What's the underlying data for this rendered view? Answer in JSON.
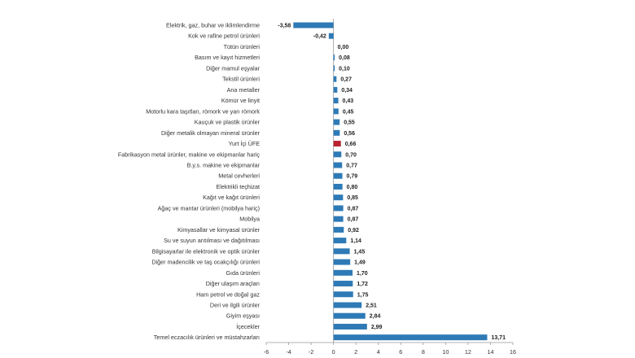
{
  "chart_data": {
    "type": "bar",
    "orientation": "horizontal",
    "categories": [
      "Elektrik, gaz, buhar ve iklimlendirme",
      "Kok ve rafine petrol ürünleri",
      "Tütün ürünleri",
      "Basım ve kayıt hizmetleri",
      "Diğer mamul eşyalar",
      "Tekstil ürünleri",
      "Ana metaller",
      "Kömür ve linyit",
      "Motorlu kara taşıtları, römork ve yarı römork",
      "Kauçuk ve plastik ürünler",
      "Diğer metalik olmayan mineral ürünler",
      "Yurt İçi ÜFE",
      "Fabrikasyon metal ürünler, makine ve ekipmanlar hariç",
      "B.y.s. makine ve ekipmanlar",
      "Metal cevherleri",
      "Elektrikli teçhizat",
      "Kağıt ve kağıt ürünleri",
      "Ağaç ve mantar ürünleri (mobilya hariç)",
      "Mobilya",
      "Kimyasallar ve kimyasal ürünler",
      "Su ve suyun arıtılması ve dağıtılması",
      "Bilgisayarlar ile elektronik ve optik ürünler",
      "Diğer madencilik ve taş ocakçılığı ürünleri",
      "Gıda ürünleri",
      "Diğer ulaşım araçları",
      "Ham petrol ve doğal gaz",
      "Deri ve ilgili ürünler",
      "Giyim eşyası",
      "İçecekler",
      "Temel eczacılık ürünleri ve müstahzarları"
    ],
    "values": [
      -3.58,
      -0.42,
      0.0,
      0.08,
      0.1,
      0.27,
      0.34,
      0.43,
      0.45,
      0.55,
      0.56,
      0.66,
      0.7,
      0.77,
      0.79,
      0.8,
      0.85,
      0.87,
      0.87,
      0.92,
      1.14,
      1.45,
      1.49,
      1.7,
      1.72,
      1.75,
      2.51,
      2.84,
      2.99,
      13.71
    ],
    "value_labels": [
      "-3,58",
      "-0,42",
      "0,00",
      "0,08",
      "0,10",
      "0,27",
      "0,34",
      "0,43",
      "0,45",
      "0,55",
      "0,56",
      "0,66",
      "0,70",
      "0,77",
      "0,79",
      "0,80",
      "0,85",
      "0,87",
      "0,87",
      "0,92",
      "1,14",
      "1,45",
      "1,49",
      "1,70",
      "1,72",
      "1,75",
      "2,51",
      "2,84",
      "2,99",
      "13,71"
    ],
    "highlight_category": "Yurt İçi ÜFE",
    "xlim": [
      -6,
      16
    ],
    "x_ticks": [
      -6,
      -4,
      -2,
      0,
      2,
      4,
      6,
      8,
      10,
      12,
      14,
      16
    ],
    "x_tick_labels": [
      "-6",
      "-4",
      "-2",
      "0",
      "2",
      "4",
      "6",
      "8",
      "10",
      "12",
      "14",
      "16"
    ],
    "title": "",
    "xlabel": "",
    "ylabel": "",
    "grid": false,
    "colors": {
      "bar": "#2e7ab6",
      "highlight": "#b8232f",
      "axis": "#999999"
    }
  }
}
